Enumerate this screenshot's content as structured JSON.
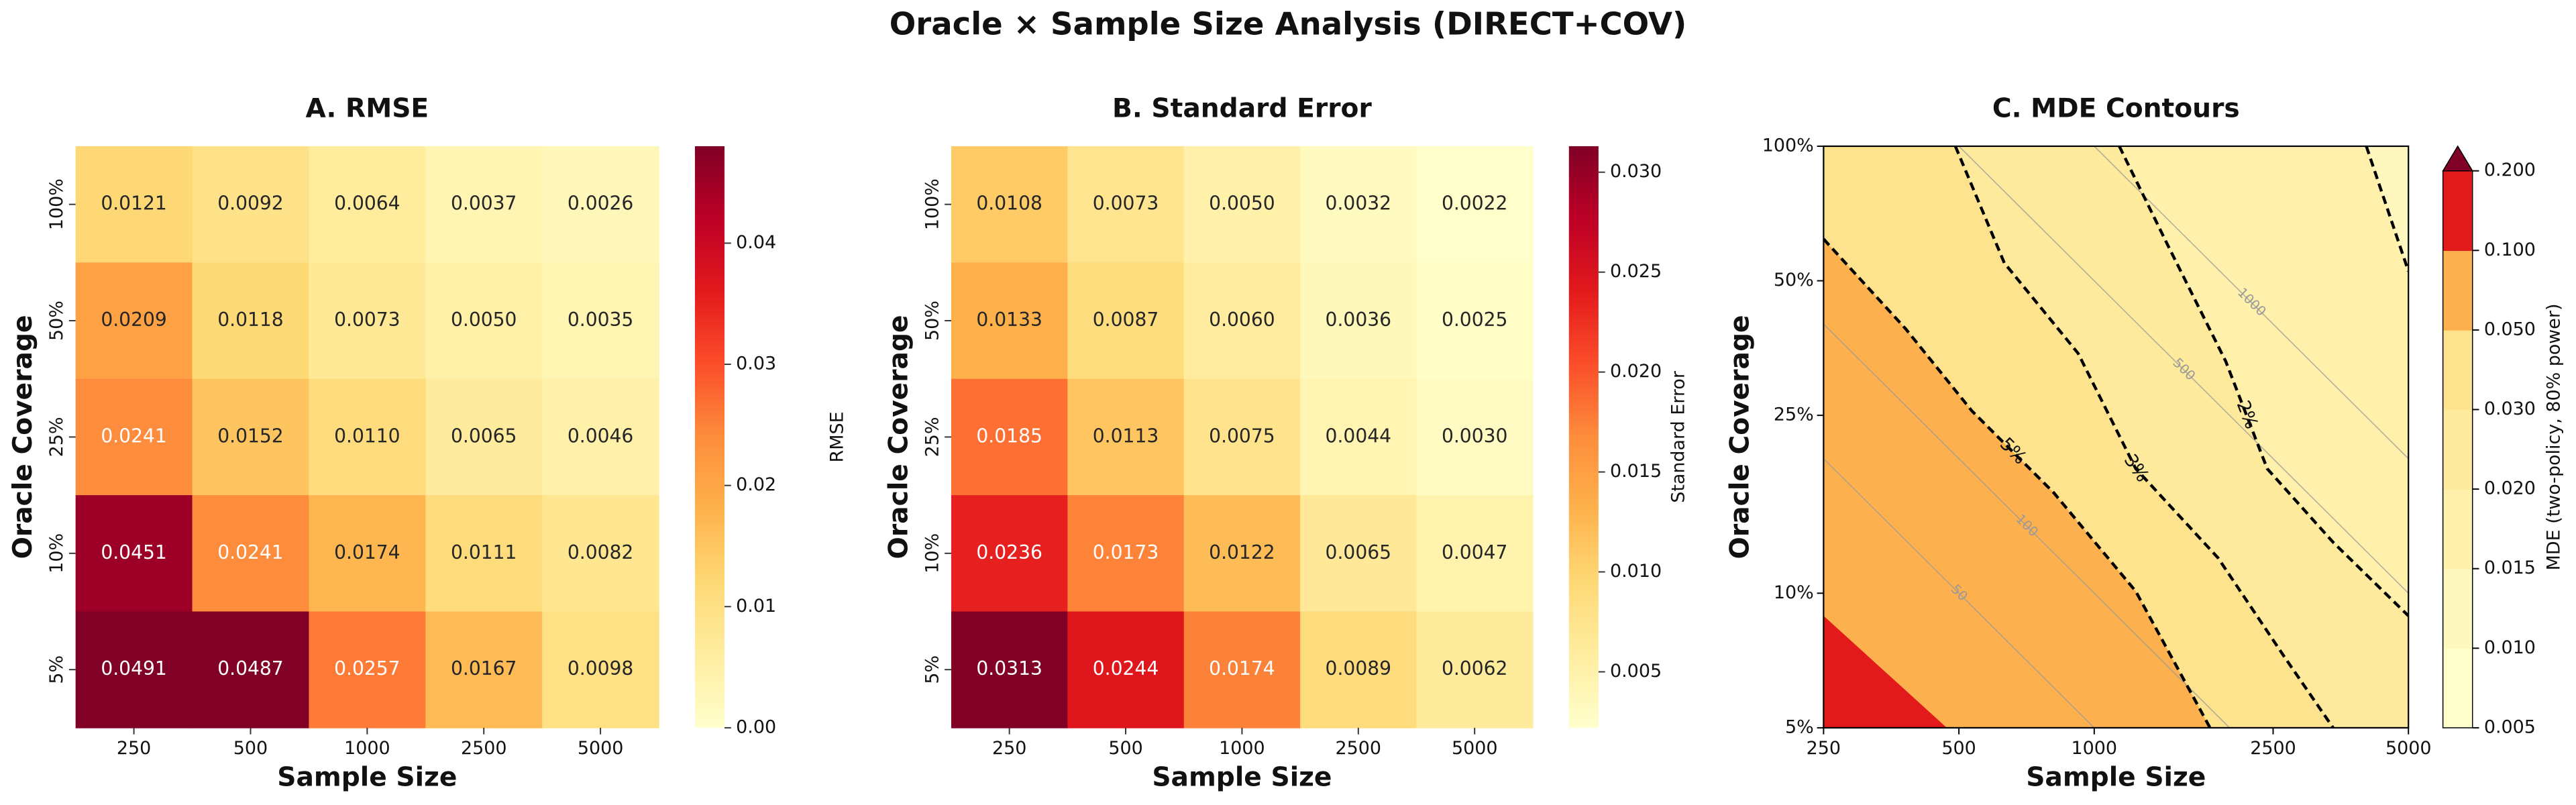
{
  "title": "Oracle × Sample Size Analysis (DIRECT+COV)",
  "chart_data": [
    {
      "type": "heatmap",
      "title": "A. RMSE",
      "xlabel": "Sample Size",
      "ylabel": "Oracle Coverage",
      "categories": [
        "250",
        "500",
        "1000",
        "2500",
        "5000"
      ],
      "rows": [
        "100%",
        "50%",
        "25%",
        "10%",
        "5%"
      ],
      "values": [
        [
          0.0121,
          0.0092,
          0.0064,
          0.0037,
          0.0026
        ],
        [
          0.0209,
          0.0118,
          0.0073,
          0.005,
          0.0035
        ],
        [
          0.0241,
          0.0152,
          0.011,
          0.0065,
          0.0046
        ],
        [
          0.0451,
          0.0241,
          0.0174,
          0.0111,
          0.0082
        ],
        [
          0.0491,
          0.0487,
          0.0257,
          0.0167,
          0.0098
        ]
      ],
      "value_labels": [
        [
          "0.0121",
          "0.0092",
          "0.0064",
          "0.0037",
          "0.0026"
        ],
        [
          "0.0209",
          "0.0118",
          "0.0073",
          "0.0050",
          "0.0035"
        ],
        [
          "0.0241",
          "0.0152",
          "0.0110",
          "0.0065",
          "0.0046"
        ],
        [
          "0.0451",
          "0.0241",
          "0.0174",
          "0.0111",
          "0.0082"
        ],
        [
          "0.0491",
          "0.0487",
          "0.0257",
          "0.0167",
          "0.0098"
        ]
      ],
      "colormap": [
        "#ffffcc",
        "#ffeda0",
        "#fed976",
        "#feb24c",
        "#fd8d3c",
        "#fc4e2a",
        "#e31a1c",
        "#bd0026",
        "#800026"
      ],
      "clim": [
        0,
        0.048
      ],
      "cticks": [
        {
          "value": 0,
          "label": "0.00"
        },
        0.01,
        0.02,
        0.03,
        0.04
      ],
      "colorbar_label": "RMSE"
    },
    {
      "type": "heatmap",
      "title": "B. Standard Error",
      "xlabel": "Sample Size",
      "ylabel": "Oracle Coverage",
      "categories": [
        "250",
        "500",
        "1000",
        "2500",
        "5000"
      ],
      "rows": [
        "100%",
        "50%",
        "25%",
        "10%",
        "5%"
      ],
      "values": [
        [
          0.0108,
          0.0073,
          0.005,
          0.0032,
          0.0022
        ],
        [
          0.0133,
          0.0087,
          0.006,
          0.0036,
          0.0025
        ],
        [
          0.0185,
          0.0113,
          0.0075,
          0.0044,
          0.003
        ],
        [
          0.0236,
          0.0173,
          0.0122,
          0.0065,
          0.0047
        ],
        [
          0.0313,
          0.0244,
          0.0174,
          0.0089,
          0.0062
        ]
      ],
      "value_labels": [
        [
          "0.0108",
          "0.0073",
          "0.0050",
          "0.0032",
          "0.0022"
        ],
        [
          "0.0133",
          "0.0087",
          "0.0060",
          "0.0036",
          "0.0025"
        ],
        [
          "0.0185",
          "0.0113",
          "0.0075",
          "0.0044",
          "0.0030"
        ],
        [
          "0.0236",
          "0.0173",
          "0.0122",
          "0.0065",
          "0.0047"
        ],
        [
          "0.0313",
          "0.0244",
          "0.0174",
          "0.0089",
          "0.0062"
        ]
      ],
      "colormap": [
        "#ffffcc",
        "#ffeda0",
        "#fed976",
        "#feb24c",
        "#fd8d3c",
        "#fc4e2a",
        "#e31a1c",
        "#bd0026",
        "#800026"
      ],
      "clim": [
        0.0022,
        0.0313
      ],
      "cticks": [
        0.005,
        {
          "value": 0.01,
          "label": "0.010"
        },
        0.015,
        {
          "value": 0.02,
          "label": "0.020"
        },
        0.025,
        {
          "value": 0.03,
          "label": "0.030"
        }
      ],
      "colorbar_label": "Standard Error"
    },
    {
      "type": "contour",
      "title": "C. MDE Contours",
      "xlabel": "Sample Size",
      "ylabel": "Oracle Coverage",
      "xscale": "log",
      "yscale": "log",
      "xlim": [
        250,
        5000
      ],
      "ylim": [
        5,
        100
      ],
      "xticks": [
        250,
        500,
        1000,
        2500,
        5000
      ],
      "yticks": [
        {
          "value": 5,
          "label": "5%"
        },
        {
          "value": 10,
          "label": "10%"
        },
        {
          "value": 25,
          "label": "25%"
        },
        {
          "value": 50,
          "label": "50%"
        },
        {
          "value": 100,
          "label": "100%"
        }
      ],
      "levels": [
        0.005,
        0.01,
        0.015,
        0.02,
        0.03,
        0.05,
        0.1,
        0.2
      ],
      "colors": [
        "#ffffcc",
        "#fff8be",
        "#fff1ac",
        "#feea9c",
        "#fee38e",
        "#fdb14e",
        "#e31a1c"
      ],
      "extend_color": "#800026",
      "cticks": [
        0.005,
        {
          "value": 0.01,
          "label": "0.010"
        },
        0.015,
        {
          "value": 0.02,
          "label": "0.020"
        },
        {
          "value": 0.03,
          "label": "0.030"
        },
        {
          "value": 0.05,
          "label": "0.050"
        },
        {
          "value": 0.1,
          "label": "0.100"
        },
        {
          "value": 0.2,
          "label": "0.200"
        }
      ],
      "colorbar_label": "MDE (two-policy, 80% power)",
      "contours": [
        {
          "level": 0.1,
          "dashed": false,
          "x": [
            250,
            470
          ],
          "y": [
            8.9,
            5
          ]
        },
        {
          "level": 0.05,
          "label": "5%",
          "dashed": true,
          "x": [
            250,
            381,
            534,
            812,
            1237,
            1810
          ],
          "y": [
            62,
            39,
            25.6,
            16.8,
            10.1,
            5
          ]
        },
        {
          "level": 0.03,
          "label": "3%",
          "dashed": true,
          "x": [
            491,
            631,
            921,
            1237,
            1885,
            2650,
            3400
          ],
          "y": [
            100,
            54.8,
            34.4,
            19,
            12,
            7.2,
            5
          ]
        },
        {
          "level": 0.02,
          "label": "2%",
          "dashed": true,
          "x": [
            1137,
            1462,
            1962,
            2425,
            3400,
            5000
          ],
          "y": [
            100,
            59.7,
            33,
            19,
            13,
            8.9
          ]
        },
        {
          "level": 0.015,
          "dashed": true,
          "x": [
            4030,
            5000
          ],
          "y": [
            100,
            52.5
          ]
        }
      ],
      "iso_levels": [
        50,
        100,
        500,
        1000
      ]
    }
  ]
}
